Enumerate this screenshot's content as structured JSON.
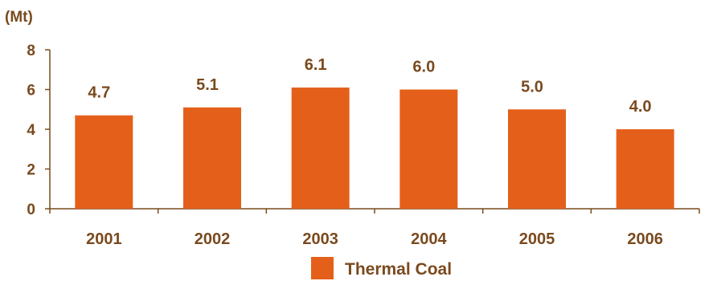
{
  "chart_data": {
    "type": "bar",
    "unit_label": "(Mt)",
    "categories": [
      "2001",
      "2002",
      "2003",
      "2004",
      "2005",
      "2006"
    ],
    "series": [
      {
        "name": "Thermal Coal",
        "values": [
          4.7,
          5.1,
          6.1,
          6.0,
          5.0,
          4.0
        ],
        "color": "#e4601a"
      }
    ],
    "data_labels": [
      "4.7",
      "5.1",
      "6.1",
      "6.0",
      "5.0",
      "4.0"
    ],
    "yticks": [
      "0",
      "2",
      "4",
      "6",
      "8"
    ],
    "ylim": [
      0,
      8
    ],
    "grid": false,
    "legend_position": "bottom-center",
    "text_color": "#7a4a1e",
    "axis_color": "#7a4a1e"
  }
}
